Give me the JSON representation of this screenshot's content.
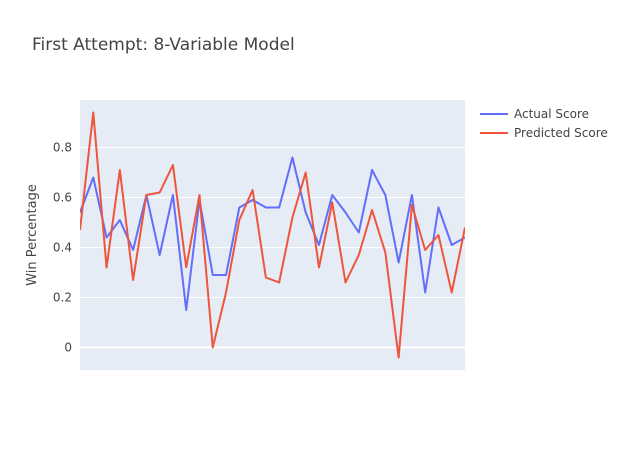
{
  "chart_data": {
    "type": "line",
    "title": "First Attempt: 8-Variable Model",
    "xlabel": "",
    "ylabel": "Win Percentage",
    "x_ticks_shown": false,
    "xlim": [
      0,
      29
    ],
    "ylim": [
      -0.09,
      0.99
    ],
    "yticks": [
      0,
      0.2,
      0.4,
      0.6,
      0.8
    ],
    "ytick_labels": [
      "0",
      "0.2",
      "0.4",
      "0.6",
      "0.8"
    ],
    "grid": true,
    "legend_position": "top-right",
    "x": [
      0,
      1,
      2,
      3,
      4,
      5,
      6,
      7,
      8,
      9,
      10,
      11,
      12,
      13,
      14,
      15,
      16,
      17,
      18,
      19,
      20,
      21,
      22,
      23,
      24,
      25,
      26,
      27,
      28,
      29
    ],
    "series": [
      {
        "name": "Actual Score",
        "color": "#636efa",
        "values": [
          0.54,
          0.68,
          0.44,
          0.51,
          0.39,
          0.61,
          0.37,
          0.61,
          0.15,
          0.59,
          0.29,
          0.29,
          0.56,
          0.59,
          0.56,
          0.56,
          0.76,
          0.54,
          0.41,
          0.61,
          0.54,
          0.46,
          0.71,
          0.61,
          0.34,
          0.61,
          0.22,
          0.56,
          0.41,
          0.44
        ]
      },
      {
        "name": "Predicted Score",
        "color": "#ef553b",
        "values": [
          0.47,
          0.94,
          0.32,
          0.71,
          0.27,
          0.61,
          0.62,
          0.73,
          0.32,
          0.61,
          0.0,
          0.22,
          0.51,
          0.63,
          0.28,
          0.26,
          0.52,
          0.7,
          0.32,
          0.58,
          0.26,
          0.37,
          0.55,
          0.38,
          -0.04,
          0.57,
          0.39,
          0.45,
          0.22,
          0.48
        ]
      }
    ]
  }
}
